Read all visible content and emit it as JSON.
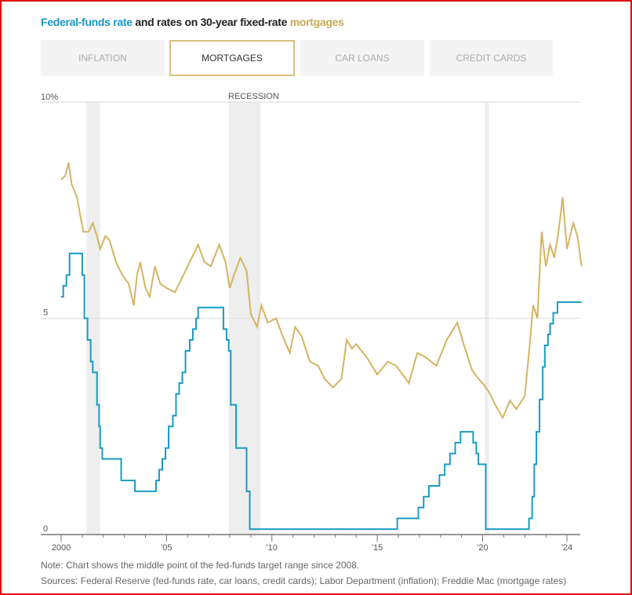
{
  "title": {
    "fed": "Federal-funds rate",
    "mid": " and rates on 30-year fixed-rate ",
    "mort": "mortgages"
  },
  "tabs": [
    {
      "label": "INFLATION"
    },
    {
      "label": "MORTGAGES",
      "active": true
    },
    {
      "label": "CAR LOANS"
    },
    {
      "label": "CREDIT CARDS"
    }
  ],
  "colors": {
    "fed": "#1a9bc4",
    "mortgage": "#d4b462",
    "recession": "#eeeeee"
  },
  "chart_data": {
    "type": "line",
    "title": "Federal-funds rate and rates on 30-year fixed-rate mortgages",
    "ylim": [
      0,
      10
    ],
    "xlim": [
      1999.0,
      2025.0
    ],
    "y_ticks": [
      {
        "v": 10,
        "label": "10%"
      },
      {
        "v": 5,
        "label": "5"
      },
      {
        "v": 0,
        "label": "0"
      }
    ],
    "x_ticks": [
      {
        "v": 2000,
        "label": "2000"
      },
      {
        "v": 2005,
        "label": "'05"
      },
      {
        "v": 2010,
        "label": "'10"
      },
      {
        "v": 2015,
        "label": "'15"
      },
      {
        "v": 2020,
        "label": "'20"
      },
      {
        "v": 2024,
        "label": "'24"
      }
    ],
    "recession_label": "RECESSION",
    "recessions": [
      [
        2001.2,
        2001.85
      ],
      [
        2007.95,
        2009.45
      ],
      [
        2020.1,
        2020.3
      ]
    ],
    "series": [
      {
        "name": "Federal-funds rate",
        "step": true,
        "points": [
          [
            2000.0,
            5.5
          ],
          [
            2000.1,
            5.75
          ],
          [
            2000.25,
            6.0
          ],
          [
            2000.4,
            6.5
          ],
          [
            2001.0,
            6.0
          ],
          [
            2001.1,
            5.0
          ],
          [
            2001.25,
            4.5
          ],
          [
            2001.4,
            4.0
          ],
          [
            2001.5,
            3.75
          ],
          [
            2001.7,
            3.0
          ],
          [
            2001.8,
            2.5
          ],
          [
            2001.85,
            2.0
          ],
          [
            2001.95,
            1.75
          ],
          [
            2002.85,
            1.25
          ],
          [
            2003.5,
            1.0
          ],
          [
            2004.5,
            1.25
          ],
          [
            2004.65,
            1.5
          ],
          [
            2004.8,
            1.75
          ],
          [
            2004.95,
            2.0
          ],
          [
            2005.1,
            2.5
          ],
          [
            2005.3,
            2.75
          ],
          [
            2005.45,
            3.25
          ],
          [
            2005.6,
            3.5
          ],
          [
            2005.75,
            3.75
          ],
          [
            2005.9,
            4.25
          ],
          [
            2006.1,
            4.5
          ],
          [
            2006.25,
            4.75
          ],
          [
            2006.4,
            5.0
          ],
          [
            2006.5,
            5.25
          ],
          [
            2007.7,
            4.75
          ],
          [
            2007.85,
            4.5
          ],
          [
            2007.95,
            4.25
          ],
          [
            2008.05,
            3.0
          ],
          [
            2008.3,
            2.0
          ],
          [
            2008.8,
            1.0
          ],
          [
            2008.95,
            0.125
          ],
          [
            2015.95,
            0.375
          ],
          [
            2016.95,
            0.625
          ],
          [
            2017.2,
            0.875
          ],
          [
            2017.45,
            1.125
          ],
          [
            2017.95,
            1.375
          ],
          [
            2018.2,
            1.625
          ],
          [
            2018.45,
            1.875
          ],
          [
            2018.7,
            2.125
          ],
          [
            2018.95,
            2.375
          ],
          [
            2019.55,
            2.125
          ],
          [
            2019.7,
            1.875
          ],
          [
            2019.8,
            1.625
          ],
          [
            2020.15,
            0.125
          ],
          [
            2022.2,
            0.375
          ],
          [
            2022.35,
            0.875
          ],
          [
            2022.45,
            1.625
          ],
          [
            2022.55,
            2.375
          ],
          [
            2022.7,
            3.125
          ],
          [
            2022.85,
            3.875
          ],
          [
            2022.95,
            4.375
          ],
          [
            2023.1,
            4.625
          ],
          [
            2023.2,
            4.875
          ],
          [
            2023.35,
            5.125
          ],
          [
            2023.55,
            5.375
          ],
          [
            2024.7,
            5.375
          ]
        ]
      },
      {
        "name": "30-year fixed-rate mortgages",
        "step": false,
        "points": [
          [
            2000.0,
            8.2
          ],
          [
            2000.2,
            8.3
          ],
          [
            2000.35,
            8.6
          ],
          [
            2000.5,
            8.1
          ],
          [
            2000.75,
            7.8
          ],
          [
            2000.9,
            7.4
          ],
          [
            2001.05,
            7.0
          ],
          [
            2001.3,
            7.0
          ],
          [
            2001.5,
            7.2
          ],
          [
            2001.7,
            6.9
          ],
          [
            2001.85,
            6.6
          ],
          [
            2002.1,
            6.9
          ],
          [
            2002.3,
            6.8
          ],
          [
            2002.6,
            6.3
          ],
          [
            2002.9,
            6.0
          ],
          [
            2003.2,
            5.8
          ],
          [
            2003.45,
            5.3
          ],
          [
            2003.6,
            6.0
          ],
          [
            2003.75,
            6.3
          ],
          [
            2004.0,
            5.7
          ],
          [
            2004.2,
            5.5
          ],
          [
            2004.45,
            6.2
          ],
          [
            2004.7,
            5.8
          ],
          [
            2005.0,
            5.7
          ],
          [
            2005.4,
            5.6
          ],
          [
            2005.7,
            5.9
          ],
          [
            2006.0,
            6.2
          ],
          [
            2006.5,
            6.7
          ],
          [
            2006.8,
            6.3
          ],
          [
            2007.1,
            6.2
          ],
          [
            2007.5,
            6.7
          ],
          [
            2007.8,
            6.3
          ],
          [
            2008.0,
            5.7
          ],
          [
            2008.2,
            6.0
          ],
          [
            2008.5,
            6.4
          ],
          [
            2008.8,
            6.1
          ],
          [
            2009.0,
            5.1
          ],
          [
            2009.3,
            4.8
          ],
          [
            2009.5,
            5.3
          ],
          [
            2009.8,
            4.9
          ],
          [
            2010.2,
            5.0
          ],
          [
            2010.5,
            4.6
          ],
          [
            2010.85,
            4.2
          ],
          [
            2011.1,
            4.8
          ],
          [
            2011.4,
            4.6
          ],
          [
            2011.8,
            4.0
          ],
          [
            2012.2,
            3.9
          ],
          [
            2012.5,
            3.6
          ],
          [
            2012.9,
            3.4
          ],
          [
            2013.3,
            3.6
          ],
          [
            2013.55,
            4.5
          ],
          [
            2013.8,
            4.3
          ],
          [
            2014.0,
            4.4
          ],
          [
            2014.5,
            4.1
          ],
          [
            2015.0,
            3.7
          ],
          [
            2015.5,
            4.0
          ],
          [
            2015.9,
            3.9
          ],
          [
            2016.5,
            3.5
          ],
          [
            2016.9,
            4.2
          ],
          [
            2017.3,
            4.1
          ],
          [
            2017.8,
            3.9
          ],
          [
            2018.3,
            4.5
          ],
          [
            2018.8,
            4.9
          ],
          [
            2019.1,
            4.4
          ],
          [
            2019.5,
            3.8
          ],
          [
            2019.8,
            3.6
          ],
          [
            2020.0,
            3.5
          ],
          [
            2020.3,
            3.3
          ],
          [
            2020.6,
            3.0
          ],
          [
            2020.95,
            2.7
          ],
          [
            2021.3,
            3.1
          ],
          [
            2021.6,
            2.9
          ],
          [
            2022.0,
            3.2
          ],
          [
            2022.2,
            4.2
          ],
          [
            2022.4,
            5.3
          ],
          [
            2022.6,
            5.0
          ],
          [
            2022.8,
            7.0
          ],
          [
            2023.0,
            6.2
          ],
          [
            2023.2,
            6.7
          ],
          [
            2023.4,
            6.4
          ],
          [
            2023.6,
            7.0
          ],
          [
            2023.8,
            7.8
          ],
          [
            2024.0,
            6.6
          ],
          [
            2024.3,
            7.2
          ],
          [
            2024.5,
            6.9
          ],
          [
            2024.7,
            6.2
          ]
        ]
      }
    ]
  },
  "notes": {
    "note": "Note: Chart shows the middle point of the fed-funds target range since 2008.",
    "sources": "Sources: Federal Reserve (fed-funds rate, car loans, credit cards); Labor Department (inflation); Freddie Mac (mortgage rates)"
  }
}
